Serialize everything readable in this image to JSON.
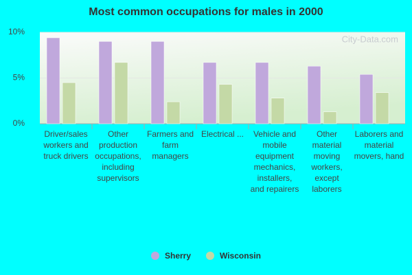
{
  "chart_data": {
    "type": "bar",
    "title": "Most common occupations for males in 2000",
    "watermark": "City-Data.com",
    "categories": [
      "Driver/sales workers and truck drivers",
      "Other production occupations, including supervisors",
      "Farmers and farm managers",
      "Electrical ...",
      "Vehicle and mobile equipment mechanics, installers, and repairers",
      "Other material moving workers, except laborers",
      "Laborers and material movers, hand"
    ],
    "series": [
      {
        "name": "Sherry",
        "color": "#c0a8dc",
        "values": [
          9.4,
          9.0,
          9.0,
          6.7,
          6.7,
          6.3,
          5.4
        ]
      },
      {
        "name": "Wisconsin",
        "color": "#c4d9a6",
        "values": [
          4.5,
          6.7,
          2.4,
          4.3,
          2.8,
          1.3,
          3.4
        ]
      }
    ],
    "ylim": [
      0,
      10
    ],
    "yticks": [
      {
        "value": 0,
        "label": "0%"
      },
      {
        "value": 5,
        "label": "5%"
      },
      {
        "value": 10,
        "label": "10%"
      }
    ],
    "grid": true,
    "legend": "bottom"
  }
}
